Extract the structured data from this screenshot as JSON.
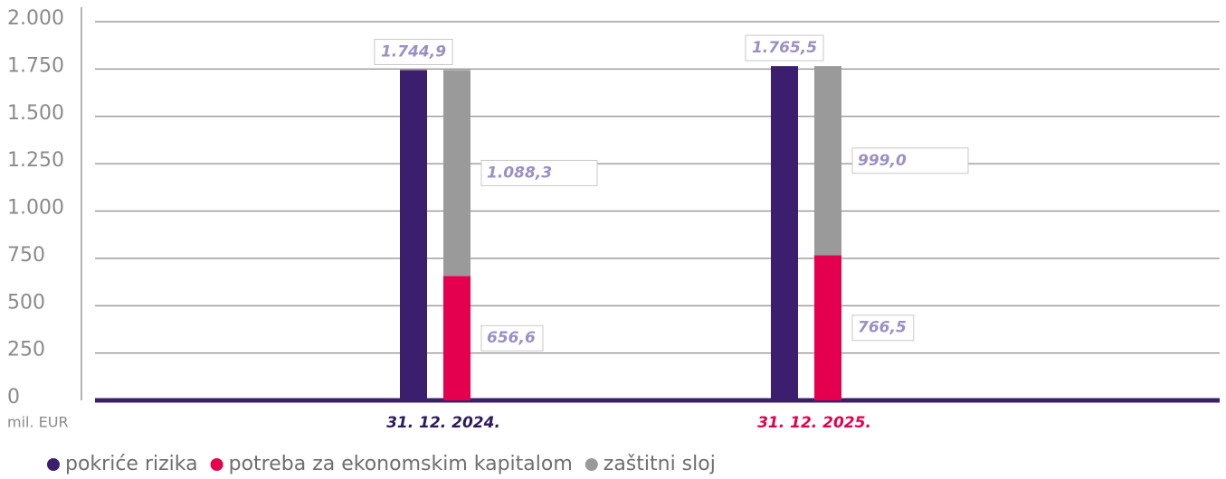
{
  "chart_data": {
    "type": "bar",
    "stacked": true,
    "y_label": "mil. EUR",
    "categories": [
      "31. 12. 2024.",
      "31. 12. 2025."
    ],
    "category_colors": [
      "#2e1a5c",
      "#e4004f"
    ],
    "series": [
      {
        "name": "pokriće rizika",
        "color": "#3b1f6e",
        "stack": "a",
        "values": [
          1744.9,
          1765.5
        ],
        "value_labels": [
          "1.744,9",
          "1.765,5"
        ]
      },
      {
        "name": "potreba za ekonomskim kapitalom",
        "color": "#e4004f",
        "stack": "b",
        "values": [
          656.6,
          766.5
        ],
        "value_labels": [
          "656,6",
          "766,5"
        ]
      },
      {
        "name": "zaštitni sloj",
        "color": "#9a9a9a",
        "stack": "b",
        "values": [
          1088.3,
          999.0
        ],
        "value_labels": [
          "1.088,3",
          "999,0"
        ]
      }
    ],
    "ylim": [
      0,
      2000
    ],
    "yticks": [
      0,
      250,
      500,
      750,
      {
        "value": 1000,
        "label": "1.000"
      },
      {
        "value": 1250,
        "label": "1.250"
      },
      {
        "value": 1500,
        "label": "1.500"
      },
      {
        "value": 1750,
        "label": "1.750"
      },
      {
        "value": 2000,
        "label": "2.000"
      }
    ],
    "grid": true
  }
}
